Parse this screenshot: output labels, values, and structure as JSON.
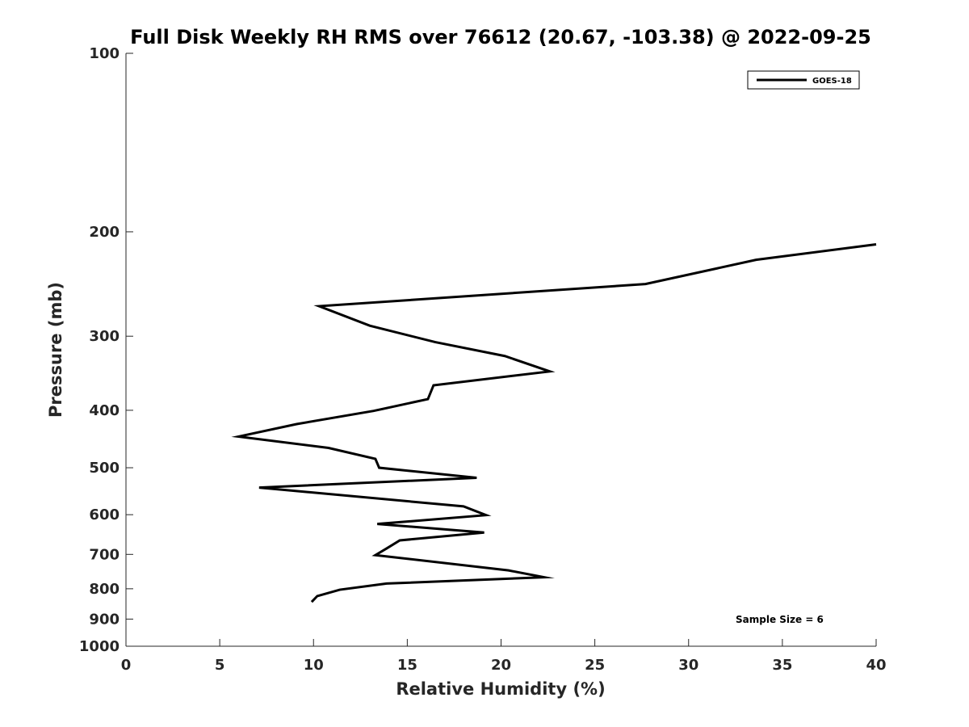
{
  "chart_data": {
    "type": "line",
    "title": "Full Disk Weekly RH RMS over 76612 (20.67, -103.38) @ 2022-09-25",
    "xlabel": "Relative Humidity (%)",
    "ylabel": "Pressure (mb)",
    "xlim": [
      0,
      40
    ],
    "ylim": [
      100,
      1000
    ],
    "yscale": "log",
    "y_reversed": true,
    "xticks": [
      "0",
      "5",
      "10",
      "15",
      "20",
      "25",
      "30",
      "35",
      "40"
    ],
    "yticks": [
      "100",
      "200",
      "300",
      "400",
      "500",
      "600",
      "700",
      "800",
      "900",
      "1000"
    ],
    "grid": false,
    "legend_position": "top-right",
    "series": [
      {
        "name": "GOES-18",
        "color": "#000000",
        "points": [
          {
            "rh": 40.0,
            "p": 210
          },
          {
            "rh": 33.6,
            "p": 223
          },
          {
            "rh": 27.7,
            "p": 245
          },
          {
            "rh": 10.3,
            "p": 267
          },
          {
            "rh": 13.0,
            "p": 288
          },
          {
            "rh": 16.5,
            "p": 307
          },
          {
            "rh": 20.2,
            "p": 324
          },
          {
            "rh": 22.6,
            "p": 344
          },
          {
            "rh": 16.4,
            "p": 363
          },
          {
            "rh": 16.1,
            "p": 383
          },
          {
            "rh": 13.2,
            "p": 401
          },
          {
            "rh": 9.1,
            "p": 422
          },
          {
            "rh": 6.0,
            "p": 443
          },
          {
            "rh": 10.8,
            "p": 463
          },
          {
            "rh": 13.3,
            "p": 483
          },
          {
            "rh": 13.5,
            "p": 500
          },
          {
            "rh": 18.7,
            "p": 520
          },
          {
            "rh": 7.1,
            "p": 540
          },
          {
            "rh": 18.0,
            "p": 581
          },
          {
            "rh": 19.2,
            "p": 601
          },
          {
            "rh": 13.4,
            "p": 622
          },
          {
            "rh": 19.1,
            "p": 643
          },
          {
            "rh": 14.6,
            "p": 663
          },
          {
            "rh": 13.9,
            "p": 684
          },
          {
            "rh": 13.3,
            "p": 702
          },
          {
            "rh": 20.4,
            "p": 745
          },
          {
            "rh": 22.3,
            "p": 765
          },
          {
            "rh": 13.9,
            "p": 784
          },
          {
            "rh": 11.4,
            "p": 803
          },
          {
            "rh": 10.2,
            "p": 823
          },
          {
            "rh": 9.9,
            "p": 842
          }
        ]
      }
    ],
    "annotations": [
      "Sample Size = 6"
    ]
  }
}
